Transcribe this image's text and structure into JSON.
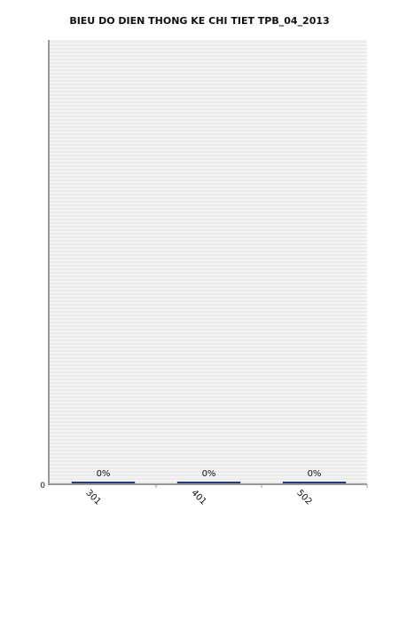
{
  "chart_data": {
    "type": "bar",
    "title": "BIEU DO DIEN THONG KE CHI TIET TPB_04_2013",
    "categories": [
      "301",
      "401",
      "502"
    ],
    "values": [
      0,
      0,
      0
    ],
    "data_labels": [
      "0%",
      "0%",
      "0%"
    ],
    "y_tick_labels": [
      "0"
    ],
    "ylim": [
      0,
      1
    ],
    "grid": true,
    "legend": "none",
    "colors": {
      "bar": "#1f3a8a",
      "plot_background": "#f4f4f4",
      "grid_line": "#e2e2e2",
      "axis": "#999999",
      "text": "#111111"
    }
  }
}
